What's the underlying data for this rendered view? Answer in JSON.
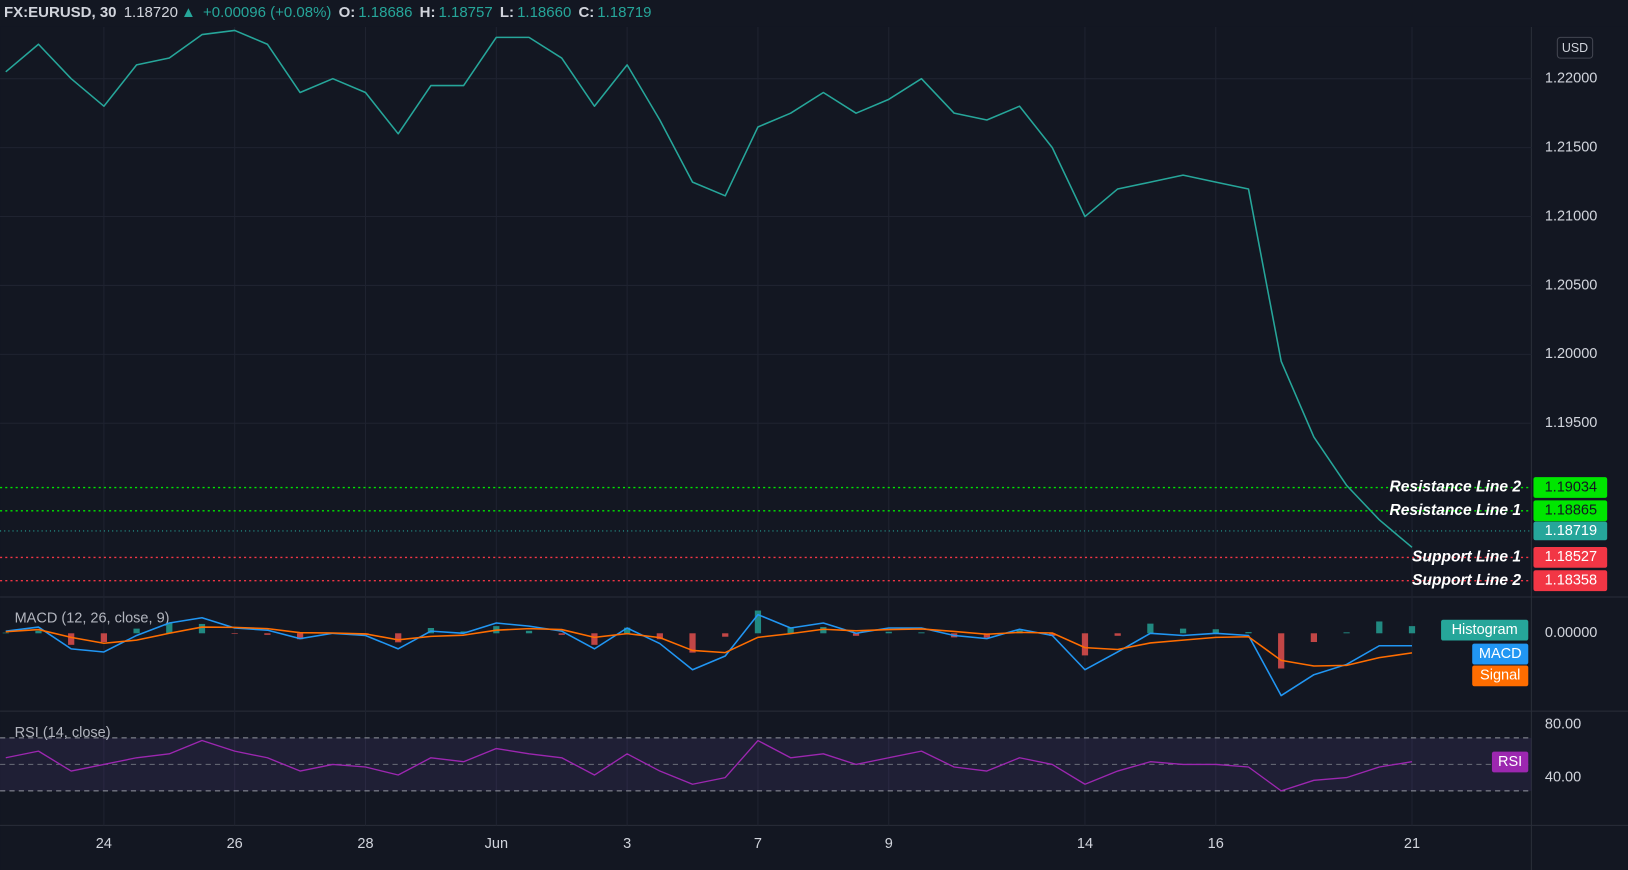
{
  "header": {
    "symbol": "FX:EURUSD, 30",
    "last": "1.18720",
    "change": "+0.00096 (+0.08%)",
    "o_label": "O:",
    "o": "1.18686",
    "h_label": "H:",
    "h": "1.18757",
    "l_label": "L:",
    "l": "1.18660",
    "c_label": "C:",
    "c": "1.18719"
  },
  "chart_data": [
    {
      "type": "line",
      "currency": "USD",
      "color": "#26a69a",
      "categories": [
        null,
        null,
        null,
        "24",
        null,
        null,
        null,
        "26",
        null,
        null,
        null,
        "28",
        null,
        null,
        null,
        "Jun",
        null,
        null,
        null,
        "3",
        null,
        null,
        null,
        "7",
        null,
        null,
        null,
        "9",
        null,
        null,
        null,
        null,
        null,
        "14",
        null,
        null,
        null,
        "16",
        null,
        null,
        null,
        null,
        null,
        "21",
        null,
        null,
        null
      ],
      "values": [
        1.2205,
        1.2225,
        1.22,
        1.218,
        1.221,
        1.2215,
        1.2232,
        1.2235,
        1.2225,
        1.219,
        1.22,
        1.219,
        1.216,
        1.2195,
        1.2195,
        1.223,
        1.223,
        1.2215,
        1.218,
        1.221,
        1.217,
        1.2125,
        1.2115,
        1.2165,
        1.2175,
        1.219,
        1.2175,
        1.2185,
        1.22,
        1.2175,
        1.217,
        1.218,
        1.215,
        1.21,
        1.212,
        1.2125,
        1.213,
        1.2125,
        1.212,
        1.1995,
        1.194,
        1.1905,
        1.188,
        1.186,
        null,
        null,
        null
      ],
      "ylim": [
        1.1824,
        1.2236
      ],
      "yticks": [
        {
          "value": 1.22,
          "label": "1.22000"
        },
        {
          "value": 1.215,
          "label": "1.21500"
        },
        {
          "value": 1.21,
          "label": "1.21000"
        },
        {
          "value": 1.205,
          "label": "1.20500"
        },
        {
          "value": 1.2,
          "label": "1.20000"
        },
        {
          "value": 1.195,
          "label": "1.19500"
        }
      ],
      "grid": true,
      "levels": [
        {
          "label": "Resistance Line 2",
          "value": 1.19034,
          "color": "#00e600"
        },
        {
          "label": "Resistance Line 1",
          "value": 1.18865,
          "color": "#00e600"
        },
        {
          "label": "Support Line 1",
          "value": 1.18527,
          "color": "#f23645"
        },
        {
          "label": "Support Line 2",
          "value": 1.18358,
          "color": "#f23645"
        }
      ],
      "last_price": {
        "value": 1.18719,
        "color": "#26a69a"
      }
    },
    {
      "type": "macd",
      "title": "MACD (12, 26, close, 9)",
      "ylim": [
        -0.0025,
        0.0011
      ],
      "yticks": [
        {
          "value": 0,
          "label": "0.00000"
        }
      ],
      "series": [
        {
          "name": "Histogram",
          "color": "#26a69a",
          "negative_color": "#ef5350",
          "values": [
            2e-05,
            8e-05,
            -0.00037,
            -0.00028,
            0.00015,
            0.00033,
            0.0003,
            -2e-05,
            -5e-05,
            -0.00019,
            -1e-05,
            -5e-05,
            -0.00029,
            0.00017,
            6e-05,
            0.00023,
            8e-05,
            -5e-05,
            -0.00037,
            0.00018,
            -0.00019,
            -0.00062,
            -0.00011,
            0.00073,
            0.00018,
            0.0002,
            -8e-05,
            5e-05,
            3e-05,
            -0.00013,
            -0.00014,
            0.0001,
            -8e-05,
            -0.00071,
            -8e-05,
            0.00031,
            0.00015,
            0.00013,
            4e-05,
            -0.00113,
            -0.00028,
            3e-05,
            0.00038,
            0.00023,
            null,
            null,
            null
          ]
        },
        {
          "name": "MACD",
          "color": "#2196f3",
          "values": [
            7e-05,
            0.0002,
            -0.0005,
            -0.0006,
            -7e-05,
            0.00033,
            0.0005,
            0.00017,
            0.0001,
            -0.00017,
            0,
            -7e-05,
            -0.0005,
            7e-05,
            0,
            0.00033,
            0.00023,
            7e-05,
            -0.0005,
            0.00017,
            -0.00033,
            -0.00117,
            -0.00073,
            0.0006,
            0.00017,
            0.00033,
            0,
            0.00017,
            0.00017,
            -7e-05,
            -0.00017,
            0.00013,
            -7e-05,
            -0.00117,
            -0.0006,
            0,
            -7e-05,
            0,
            -7e-05,
            -0.002,
            -0.00133,
            -0.001,
            -0.0004,
            -0.0004,
            null,
            null,
            null
          ]
        },
        {
          "name": "Signal",
          "color": "#ff6d00",
          "values": [
            5e-05,
            0.00012,
            -0.00013,
            -0.00032,
            -0.00022,
            0,
            0.0002,
            0.00019,
            0.00015,
            2e-05,
            1e-05,
            -2e-05,
            -0.00021,
            -0.0001,
            -6e-05,
            0.0001,
            0.00015,
            0.00012,
            -0.00013,
            -1e-05,
            -0.00014,
            -0.00055,
            -0.00062,
            -0.00013,
            -1e-05,
            0.00013,
            8e-05,
            0.00012,
            0.00014,
            6e-05,
            -3e-05,
            3e-05,
            1e-05,
            -0.00046,
            -0.00052,
            -0.00031,
            -0.00022,
            -0.00013,
            -0.00011,
            -0.00087,
            -0.00105,
            -0.00103,
            -0.00078,
            -0.00063,
            null,
            null,
            null
          ]
        }
      ]
    },
    {
      "type": "rsi",
      "title": "RSI (14, close)",
      "ylim": [
        4,
        88.6
      ],
      "yticks": [
        {
          "value": 80,
          "label": "80.00"
        },
        {
          "value": 40,
          "label": "40.00"
        }
      ],
      "bands": [
        30,
        70
      ],
      "midline": 50,
      "series": [
        {
          "name": "RSI",
          "color": "#9c27b0",
          "values": [
            55,
            60,
            45,
            50,
            55,
            58,
            68,
            60,
            55,
            45,
            50,
            48,
            42,
            55,
            52,
            62,
            58,
            55,
            42,
            58,
            45,
            35,
            40,
            68,
            55,
            58,
            50,
            55,
            60,
            48,
            45,
            55,
            50,
            35,
            45,
            52,
            50,
            50,
            48,
            30,
            38,
            40,
            48,
            52,
            null,
            null,
            null
          ]
        }
      ]
    }
  ]
}
